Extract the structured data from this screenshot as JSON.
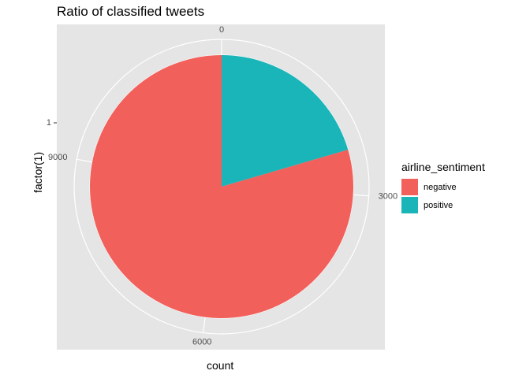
{
  "chart_data": {
    "type": "pie",
    "title": "Ratio of classified tweets",
    "xlabel": "count",
    "ylabel": "factor(1)",
    "y_tick_labels": [
      "1"
    ],
    "theta_tick_values": [
      0,
      3000,
      6000,
      9000
    ],
    "theta_tick_labels": [
      "0",
      "3000",
      "6000",
      "9000"
    ],
    "legend_title": "airline_sentiment",
    "legend_position": "right",
    "categories": [
      "positive",
      "negative"
    ],
    "values": [
      2363,
      9178
    ],
    "colors": {
      "positive": "#1ab5b9",
      "negative": "#f2605b"
    },
    "legend": [
      {
        "label": "negative",
        "color": "#f2605b"
      },
      {
        "label": "positive",
        "color": "#1ab5b9"
      }
    ],
    "panel_background": "#e5e5e5",
    "grid": true
  }
}
